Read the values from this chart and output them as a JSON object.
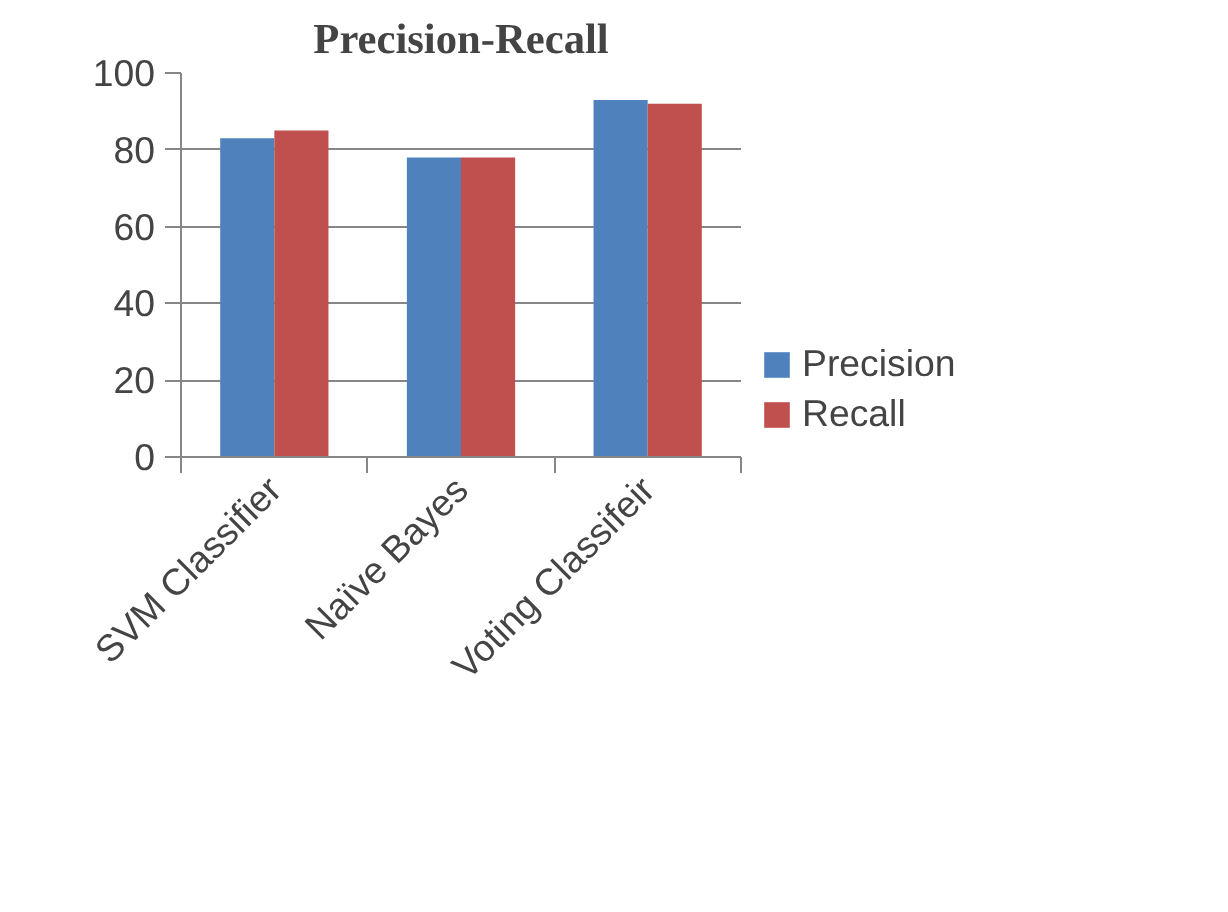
{
  "chart_data": {
    "type": "bar",
    "title": "Precision-Recall",
    "categories": [
      "SVM Classifier",
      "Naïve Bayes",
      "Voting Classifeir"
    ],
    "series": [
      {
        "name": "Precision",
        "color": "#4f81bd",
        "values": [
          83,
          78,
          93
        ]
      },
      {
        "name": "Recall",
        "color": "#c0504d",
        "values": [
          85,
          78,
          92
        ]
      }
    ],
    "ylim": [
      0,
      100
    ],
    "yticks": [
      0,
      20,
      40,
      60,
      80,
      100
    ],
    "grid": "y",
    "legend": "right"
  }
}
